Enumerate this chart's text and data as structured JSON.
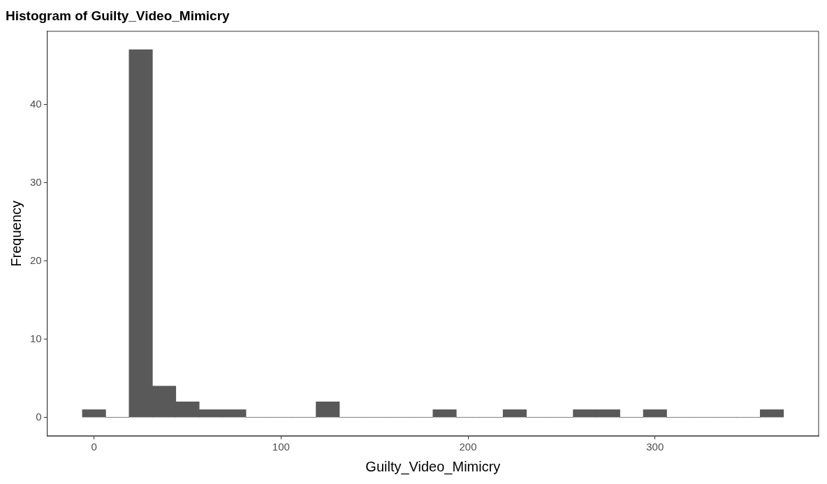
{
  "chart_data": {
    "type": "histogram",
    "title": "Histogram of Guilty_Video_Mimicry",
    "xlabel": "Guilty_Video_Mimicry",
    "ylabel": "Frequency",
    "color": "#595959",
    "bins": [
      -6.25,
      6.25,
      18.75,
      31.25,
      43.75,
      56.25,
      68.75,
      81.25,
      93.75,
      106.25,
      118.75,
      131.25,
      143.75,
      156.25,
      168.75,
      181.25,
      193.75,
      206.25,
      218.75,
      231.25,
      243.75,
      256.25,
      268.75,
      281.25,
      293.75,
      306.25,
      318.75,
      331.25,
      343.75,
      356.25,
      368.75
    ],
    "values": [
      1,
      0,
      47,
      4,
      2,
      1,
      1,
      0,
      0,
      0,
      2,
      0,
      0,
      0,
      0,
      1,
      0,
      0,
      1,
      0,
      0,
      1,
      1,
      0,
      1,
      0,
      0,
      0,
      0,
      1
    ],
    "xlim": [
      -25,
      387.5
    ],
    "ylim": [
      -2.35,
      49.35
    ],
    "xticks": [
      0,
      100,
      200,
      300
    ],
    "yticks": [
      0,
      10,
      20,
      30,
      40
    ]
  }
}
